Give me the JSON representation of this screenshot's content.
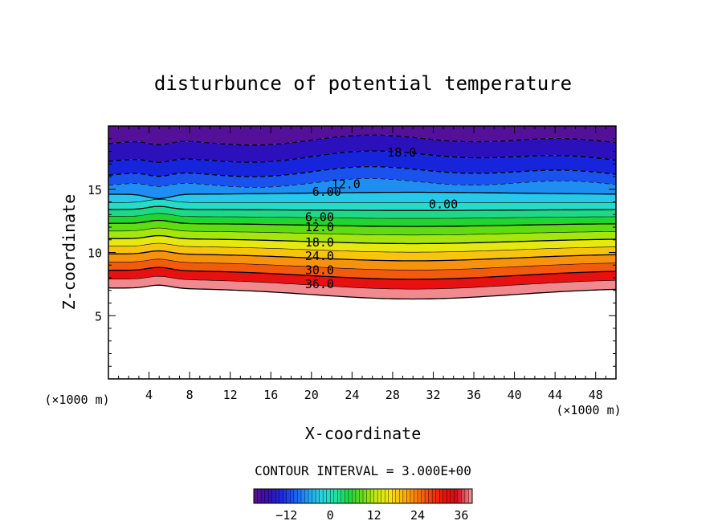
{
  "chart_data": {
    "type": "contour",
    "title": "disturbunce of potential temperature",
    "xlabel": "X-coordinate",
    "ylabel": "Z-coordinate",
    "x_unit": "(×1000 m)",
    "z_unit": "(×1000 m)",
    "xlim": [
      0,
      50
    ],
    "ylim": [
      0,
      20
    ],
    "x_ticks": [
      "4",
      "8",
      "12",
      "16",
      "20",
      "24",
      "28",
      "32",
      "36",
      "40",
      "44",
      "48"
    ],
    "y_ticks": [
      "5",
      "10",
      "15"
    ],
    "contour_interval": "CONTOUR INTERVAL = 3.000E+00",
    "colorbar": {
      "range": [
        -21,
        39
      ],
      "ticks": [
        "-12",
        "0",
        "12",
        "24",
        "36"
      ],
      "colors": [
        "#5a0e8c",
        "#3410b8",
        "#1a2ae0",
        "#1b64f2",
        "#23a3f0",
        "#27d9e0",
        "#22e09a",
        "#1fd640",
        "#6fdc10",
        "#c9e80e",
        "#f4e60f",
        "#f7b40e",
        "#f67c0c",
        "#f3400c",
        "#e8120e",
        "#d40a18",
        "#f3858c"
      ]
    },
    "bands": [
      {
        "value": 36,
        "color": "#f08a8e",
        "base": 7.2,
        "amp": 0.55
      },
      {
        "value": 33,
        "color": "#e81010",
        "base": 7.9,
        "amp": 0.5
      },
      {
        "value": 30,
        "color": "#f25a0e",
        "base": 8.6,
        "amp": 0.45
      },
      {
        "value": 27,
        "color": "#f6920e",
        "base": 9.25,
        "amp": 0.4
      },
      {
        "value": 24,
        "color": "#f8c40e",
        "base": 9.9,
        "amp": 0.35
      },
      {
        "value": 21,
        "color": "#e6e80f",
        "base": 10.5,
        "amp": 0.3
      },
      {
        "value": 18,
        "color": "#a6e60f",
        "base": 11.1,
        "amp": 0.25
      },
      {
        "value": 15,
        "color": "#5fdc12",
        "base": 11.7,
        "amp": 0.2
      },
      {
        "value": 12,
        "color": "#22d430",
        "base": 12.3,
        "amp": 0.15
      },
      {
        "value": 9,
        "color": "#1ed888",
        "base": 12.85,
        "amp": 0.1
      },
      {
        "value": 6,
        "color": "#24dcc8",
        "base": 13.4,
        "amp": 0.05
      },
      {
        "value": 3,
        "color": "#28c8ea",
        "base": 13.95,
        "amp": 0.0
      },
      {
        "value": 0,
        "color": "#1f8ef2",
        "base": 14.6,
        "amp": -0.1
      },
      {
        "value": -3,
        "color": "#1a52ee",
        "base": 15.3,
        "amp": -0.2
      },
      {
        "value": -6,
        "color": "#1624dc",
        "base": 16.1,
        "amp": -0.3
      },
      {
        "value": -12,
        "color": "#2c10bc",
        "base": 17.2,
        "amp": -0.4
      },
      {
        "value": -18,
        "color": "#55109a",
        "base": 18.6,
        "amp": -0.3
      }
    ],
    "contour_labels": [
      {
        "text": "18.0",
        "x": 28.9,
        "z": 17.9
      },
      {
        "text": "12.0",
        "x": 23.4,
        "z": 15.4
      },
      {
        "text": "6.00",
        "x": 21.5,
        "z": 14.8
      },
      {
        "text": "0.00",
        "x": 33.0,
        "z": 13.8
      },
      {
        "text": "6.00",
        "x": 20.8,
        "z": 12.8
      },
      {
        "text": "12.0",
        "x": 20.8,
        "z": 12.0
      },
      {
        "text": "18.0",
        "x": 20.8,
        "z": 10.8
      },
      {
        "text": "24.0",
        "x": 20.8,
        "z": 9.7
      },
      {
        "text": "30.0",
        "x": 20.8,
        "z": 8.6
      },
      {
        "text": "36.0",
        "x": 20.8,
        "z": 7.5
      }
    ]
  }
}
